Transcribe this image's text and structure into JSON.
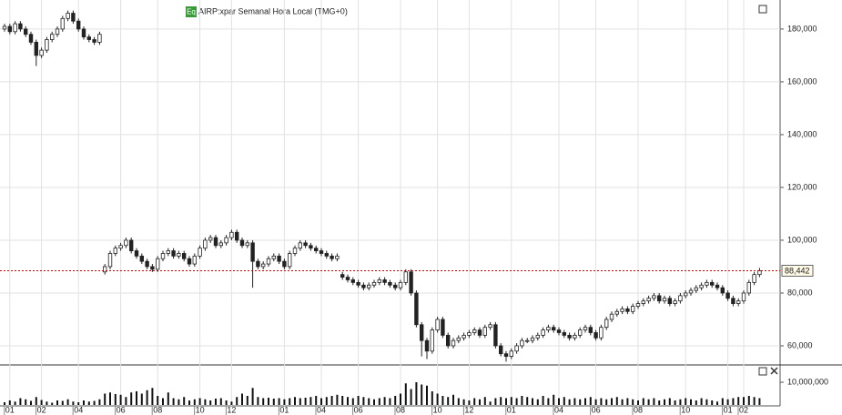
{
  "chart_data": {
    "type": "candlestick",
    "title": "AIRP:xpar Semanal Hora Local (TMG+0)",
    "badge": "Eq",
    "categories": [
      null,
      "01",
      null,
      null,
      null,
      null,
      null,
      "02",
      null,
      null,
      null,
      null,
      null,
      null,
      "04",
      null,
      null,
      null,
      null,
      null,
      null,
      null,
      "06",
      null,
      null,
      null,
      null,
      null,
      null,
      "08",
      null,
      null,
      null,
      null,
      null,
      null,
      null,
      "10",
      null,
      null,
      null,
      null,
      null,
      "12",
      null,
      null,
      null,
      null,
      null,
      null,
      null,
      null,
      null,
      "01",
      null,
      null,
      null,
      null,
      null,
      null,
      "04",
      null,
      null,
      null,
      null,
      null,
      null,
      "06",
      null,
      null,
      null,
      null,
      null,
      null,
      null,
      "08",
      null,
      null,
      null,
      null,
      null,
      null,
      "10",
      null,
      null,
      null,
      null,
      null,
      "12",
      null,
      null,
      null,
      null,
      null,
      null,
      null,
      "01",
      null,
      null,
      null,
      null,
      null,
      null,
      null,
      null,
      "04",
      null,
      null,
      null,
      null,
      null,
      null,
      "06",
      null,
      null,
      null,
      null,
      null,
      null,
      null,
      "08",
      null,
      null,
      null,
      null,
      null,
      null,
      null,
      null,
      "10",
      null,
      null,
      null,
      null,
      null,
      null,
      null,
      "01",
      null,
      null,
      "02",
      null,
      null,
      null
    ],
    "open": [
      180000,
      181000,
      179000,
      182000,
      180000,
      178000,
      175000,
      170000,
      172000,
      176000,
      178000,
      180000,
      184000,
      186000,
      183000,
      180000,
      177000,
      176000,
      175000,
      88000,
      90000,
      95000,
      97000,
      98000,
      100000,
      96000,
      94000,
      92000,
      90000,
      89000,
      93000,
      95000,
      96000,
      94000,
      95000,
      93000,
      91000,
      94000,
      97000,
      100000,
      101000,
      98000,
      99000,
      101000,
      103000,
      100000,
      98000,
      99000,
      92000,
      90000,
      91000,
      93000,
      94000,
      92000,
      90000,
      95000,
      97000,
      99000,
      98000,
      97000,
      96000,
      95000,
      94000,
      93000,
      87000,
      86000,
      85000,
      84000,
      83000,
      82000,
      83000,
      84000,
      85000,
      84000,
      83000,
      82000,
      84000,
      88000,
      80000,
      68000,
      62000,
      58000,
      66000,
      70000,
      64000,
      60000,
      62000,
      63000,
      64000,
      65000,
      66000,
      64000,
      67000,
      68000,
      60000,
      57000,
      56000,
      58000,
      60000,
      62000,
      62000,
      63000,
      64000,
      66000,
      67000,
      66000,
      65000,
      64000,
      63000,
      64000,
      66000,
      67000,
      65000,
      63000,
      67000,
      70000,
      72000,
      73000,
      74000,
      73000,
      75000,
      76000,
      77000,
      78000,
      79000,
      77000,
      78000,
      76000,
      77000,
      79000,
      80000,
      81000,
      82000,
      83000,
      84000,
      83000,
      82000,
      80000,
      78000,
      76000,
      77000,
      80000,
      84000,
      87000
    ],
    "high": [
      182000,
      182000,
      183000,
      183000,
      181000,
      179000,
      176000,
      173000,
      177000,
      179000,
      181000,
      185000,
      187000,
      187000,
      184000,
      181000,
      178000,
      177000,
      179000,
      91000,
      96000,
      98000,
      99000,
      101000,
      101000,
      97000,
      95000,
      93000,
      91000,
      94000,
      96000,
      97000,
      97000,
      96000,
      96000,
      94000,
      95000,
      98000,
      101000,
      102000,
      102000,
      100000,
      102000,
      104000,
      104000,
      101000,
      100000,
      100000,
      93000,
      92000,
      94000,
      95000,
      95000,
      93000,
      96000,
      98000,
      100000,
      100000,
      99000,
      98000,
      97000,
      96000,
      95000,
      95000,
      88000,
      87000,
      86000,
      85000,
      84000,
      84000,
      85000,
      86000,
      86000,
      85000,
      84000,
      85000,
      89000,
      89000,
      81000,
      69000,
      63000,
      67000,
      71000,
      71000,
      65000,
      63000,
      64000,
      65000,
      66000,
      67000,
      67000,
      68000,
      69000,
      69000,
      61000,
      58000,
      59000,
      61000,
      63000,
      63000,
      64000,
      65000,
      67000,
      68000,
      68000,
      67000,
      66000,
      65000,
      65000,
      67000,
      68000,
      68000,
      66000,
      68000,
      71000,
      73000,
      74000,
      75000,
      75000,
      76000,
      77000,
      78000,
      79000,
      80000,
      80000,
      79000,
      79000,
      78000,
      80000,
      81000,
      82000,
      83000,
      84000,
      85000,
      85000,
      84000,
      83000,
      81000,
      79000,
      78000,
      81000,
      85000,
      88000,
      89500
    ],
    "low": [
      179000,
      178000,
      178000,
      179000,
      177000,
      174000,
      166000,
      169000,
      171000,
      175000,
      177000,
      179000,
      183000,
      182000,
      179000,
      176000,
      175000,
      174000,
      174000,
      87000,
      89000,
      94000,
      96000,
      97000,
      95000,
      93000,
      91000,
      89000,
      88000,
      88000,
      92000,
      94000,
      93000,
      93000,
      92000,
      90000,
      90000,
      93000,
      96000,
      99000,
      97000,
      97000,
      98000,
      100000,
      99000,
      97000,
      97000,
      82000,
      89000,
      89000,
      90000,
      92000,
      91000,
      89000,
      89000,
      94000,
      96000,
      97000,
      96000,
      95000,
      94000,
      93000,
      92000,
      92000,
      85000,
      84000,
      83000,
      82000,
      81000,
      81000,
      82000,
      83000,
      83000,
      82000,
      81000,
      81000,
      83000,
      79000,
      67000,
      56000,
      55000,
      57000,
      65000,
      63000,
      59000,
      59000,
      61000,
      62000,
      63000,
      64000,
      63000,
      63000,
      66000,
      59000,
      56000,
      54000,
      55000,
      57000,
      59000,
      61000,
      61000,
      62000,
      63000,
      65000,
      65000,
      64000,
      63000,
      62000,
      62000,
      63000,
      65000,
      64000,
      62000,
      62000,
      66000,
      69000,
      71000,
      72000,
      72000,
      72000,
      74000,
      75000,
      76000,
      77000,
      76000,
      76000,
      75000,
      75000,
      76000,
      78000,
      79000,
      80000,
      81000,
      82000,
      82000,
      81000,
      79000,
      77000,
      75000,
      75000,
      76000,
      79000,
      83000,
      86000
    ],
    "close": [
      181000,
      179000,
      182000,
      180000,
      178000,
      175000,
      170000,
      172000,
      176000,
      178000,
      180000,
      184000,
      186000,
      183000,
      180000,
      177000,
      176000,
      175000,
      178000,
      90000,
      95000,
      97000,
      98000,
      100000,
      96000,
      94000,
      92000,
      90000,
      89000,
      93000,
      95000,
      96000,
      94000,
      95000,
      93000,
      91000,
      94000,
      97000,
      100000,
      101000,
      98000,
      99000,
      101000,
      103000,
      100000,
      98000,
      99000,
      92000,
      90000,
      91000,
      93000,
      94000,
      92000,
      90000,
      95000,
      97000,
      99000,
      98000,
      97000,
      96000,
      95000,
      94000,
      93000,
      94000,
      86000,
      85000,
      84000,
      83000,
      82000,
      83000,
      84000,
      85000,
      84000,
      83000,
      82000,
      84000,
      88000,
      80000,
      68000,
      62000,
      58000,
      66000,
      70000,
      64000,
      60000,
      62000,
      63000,
      64000,
      65000,
      66000,
      64000,
      67000,
      68000,
      60000,
      57000,
      56000,
      58000,
      60000,
      62000,
      62000,
      63000,
      64000,
      66000,
      67000,
      66000,
      65000,
      64000,
      63000,
      64000,
      66000,
      67000,
      65000,
      63000,
      67000,
      70000,
      72000,
      73000,
      74000,
      73000,
      75000,
      76000,
      77000,
      78000,
      79000,
      77000,
      78000,
      76000,
      77000,
      79000,
      80000,
      81000,
      82000,
      83000,
      84000,
      83000,
      82000,
      80000,
      78000,
      76000,
      77000,
      80000,
      84000,
      87000,
      88442
    ],
    "volume": [
      1200000,
      2000000,
      1500000,
      3000000,
      2500000,
      1800000,
      3500000,
      2200000,
      1500000,
      1000000,
      2000000,
      1800000,
      2500000,
      1500000,
      1200000,
      2000000,
      1500000,
      1800000,
      2500000,
      5000000,
      5500000,
      4800000,
      4500000,
      3500000,
      5500000,
      6000000,
      5000000,
      6500000,
      7500000,
      4000000,
      3000000,
      5500000,
      3000000,
      2500000,
      3500000,
      2000000,
      2500000,
      3000000,
      2500000,
      2000000,
      2800000,
      3000000,
      2000000,
      1500000,
      3500000,
      5000000,
      4000000,
      7500000,
      3500000,
      3000000,
      3200000,
      2800000,
      3000000,
      2500000,
      3000000,
      3500000,
      3000000,
      3200000,
      3500000,
      4000000,
      3000000,
      3500000,
      4000000,
      4500000,
      4000000,
      3500000,
      3000000,
      4000000,
      3500000,
      3000000,
      2500000,
      3000000,
      3500000,
      3000000,
      4000000,
      5000000,
      9500000,
      7000000,
      10000000,
      9000000,
      8500000,
      6000000,
      5000000,
      4000000,
      3500000,
      4500000,
      3000000,
      2500000,
      2000000,
      3000000,
      2500000,
      3500000,
      1500000,
      3000000,
      3500000,
      3000000,
      3500000,
      3000000,
      4000000,
      3500000,
      3000000,
      2500000,
      4000000,
      3000000,
      4500000,
      3000000,
      3500000,
      2500000,
      3000000,
      2500000,
      3000000,
      3500000,
      2500000,
      3000000,
      2500000,
      3000000,
      3500000,
      2500000,
      3000000,
      2500000,
      2000000,
      3000000,
      2500000,
      3000000,
      2000000,
      2500000,
      3000000,
      2000000,
      2500000,
      3000000,
      2500000,
      2000000,
      3000000,
      2500000,
      2000000,
      1500000,
      3000000,
      2500000,
      3000000,
      3500000,
      3500000,
      4000000,
      3500000,
      3000000
    ],
    "ylim": [
      53100,
      191000
    ],
    "yticks": [
      {
        "value": 60000,
        "label": "60,000"
      },
      {
        "value": 80000,
        "label": "80,000"
      },
      {
        "value": 100000,
        "label": "100,000"
      },
      {
        "value": 120000,
        "label": "120,000"
      },
      {
        "value": 140000,
        "label": "140,000"
      },
      {
        "value": 160000,
        "label": "160,000"
      },
      {
        "value": 180000,
        "label": "180,000"
      }
    ],
    "volume_ylim": [
      0,
      17200000
    ],
    "volume_yticks": [
      {
        "value": 10000000,
        "label": "10,000,000"
      }
    ],
    "last_price": {
      "value": 88442,
      "label": "88,442"
    },
    "up_color": "#ffffff",
    "down_color": "#222222",
    "volume_color": "#111111",
    "last_price_color": "#cc0000",
    "grid": true
  }
}
